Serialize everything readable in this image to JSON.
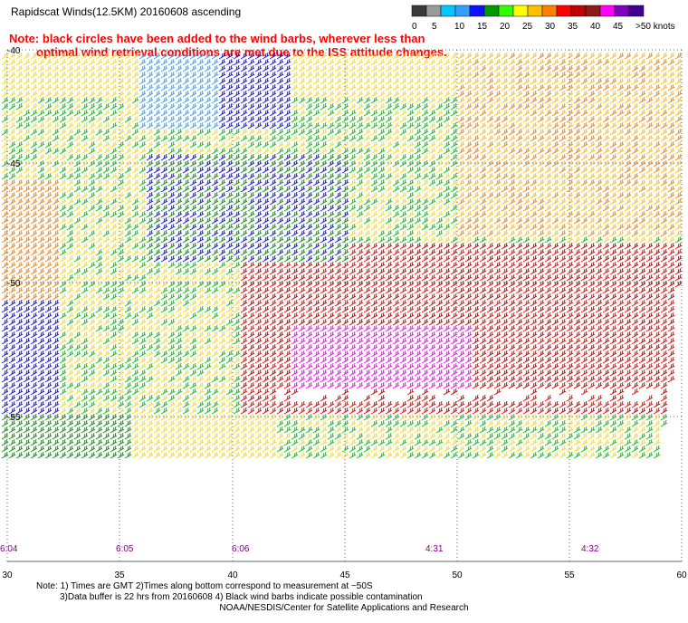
{
  "title": "Rapidscat Winds(12.5KM) 20160608 ascending",
  "note_lines": [
    "Note: black circles have been added to the wind barbs, wherever less than",
    "optimal wind retrieval conditions are met due to the ISS attitude changes."
  ],
  "colorbar": {
    "labels": [
      "0",
      "5",
      "10",
      "15",
      "20",
      "25",
      "30",
      "35",
      "40",
      "45",
      ">50 knots"
    ],
    "colors": [
      "#3a3a3a",
      "#9a9a9a",
      "#00c8ff",
      "#33a0ff",
      "#1010ff",
      "#009900",
      "#33ff00",
      "#ffff00",
      "#ffc000",
      "#ff8000",
      "#ff0000",
      "#c00000",
      "#8b1a1a",
      "#ff00ff",
      "#8000c0",
      "#400090"
    ]
  },
  "lat_labels": [
    "-40",
    "-45",
    "-50",
    "-55"
  ],
  "lon_labels": [
    "30",
    "35",
    "40",
    "45",
    "50",
    "55",
    "60"
  ],
  "time_labels": [
    "6:04",
    "6:05",
    "6:06",
    "4:31",
    "4:32"
  ],
  "footnote_lines": [
    "Note: 1) Times are GMT 2)Times along bottom correspond to measurement at ~50S",
    "3)Data buffer is 22 hrs from 20160608 4) Black wind barbs indicate possible contamination"
  ],
  "credit": "NOAA/NESDIS/Center for Satellite Applications and Research"
}
